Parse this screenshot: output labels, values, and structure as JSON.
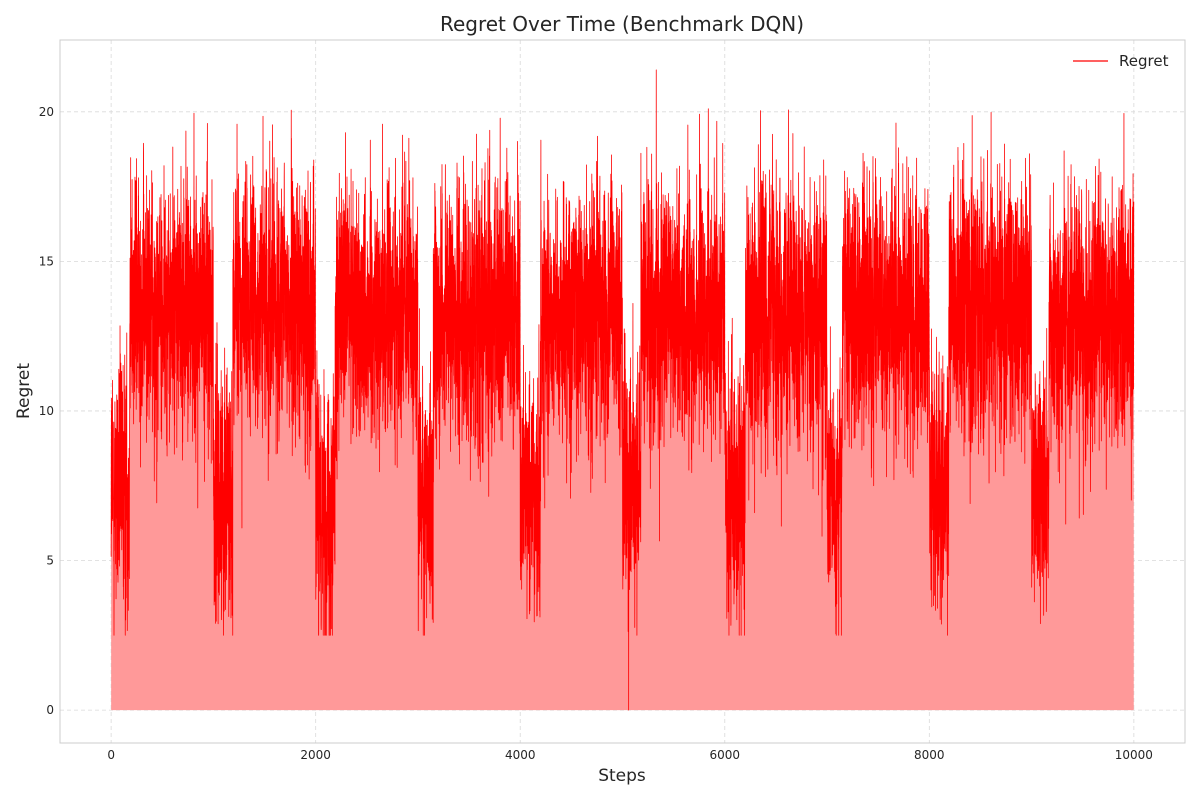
{
  "chart_data": {
    "type": "area",
    "title": "Regret Over Time (Benchmark DQN)",
    "xlabel": "Steps",
    "ylabel": "Regret",
    "xlim": [
      -500,
      10500
    ],
    "ylim": [
      -1.1,
      22.4
    ],
    "xticks": [
      0,
      2000,
      4000,
      6000,
      8000,
      10000
    ],
    "yticks": [
      0,
      5,
      10,
      15,
      20
    ],
    "grid": true,
    "legend_position": "top-right",
    "series": [
      {
        "name": "Regret",
        "color": "#ff0000",
        "fill_color": "#ff9999",
        "n_steps": 10000,
        "description": "noisy per-step regret; high phases (~9–18) alternate with low dips (~3–12) roughly every 1000 steps",
        "phases": [
          {
            "start": 0,
            "end": 180,
            "mean": 7.5,
            "spread": 2.2
          },
          {
            "start": 180,
            "end": 1000,
            "mean": 13.5,
            "spread": 2.2
          },
          {
            "start": 1000,
            "end": 1190,
            "mean": 7.5,
            "spread": 2.2
          },
          {
            "start": 1190,
            "end": 2000,
            "mean": 13.5,
            "spread": 2.2
          },
          {
            "start": 2000,
            "end": 2190,
            "mean": 7.0,
            "spread": 2.2
          },
          {
            "start": 2190,
            "end": 3000,
            "mean": 13.3,
            "spread": 2.2
          },
          {
            "start": 3000,
            "end": 3150,
            "mean": 7.2,
            "spread": 2.2
          },
          {
            "start": 3150,
            "end": 4000,
            "mean": 13.3,
            "spread": 2.2
          },
          {
            "start": 4000,
            "end": 4200,
            "mean": 7.5,
            "spread": 2.2
          },
          {
            "start": 4200,
            "end": 5000,
            "mean": 13.3,
            "spread": 2.2
          },
          {
            "start": 5000,
            "end": 5180,
            "mean": 7.5,
            "spread": 2.2
          },
          {
            "start": 5180,
            "end": 6000,
            "mean": 13.3,
            "spread": 2.2
          },
          {
            "start": 6000,
            "end": 6200,
            "mean": 7.5,
            "spread": 2.2
          },
          {
            "start": 6200,
            "end": 7000,
            "mean": 13.3,
            "spread": 2.2
          },
          {
            "start": 7000,
            "end": 7150,
            "mean": 7.3,
            "spread": 2.2
          },
          {
            "start": 7150,
            "end": 8000,
            "mean": 13.3,
            "spread": 2.2
          },
          {
            "start": 8000,
            "end": 8190,
            "mean": 7.5,
            "spread": 2.2
          },
          {
            "start": 8190,
            "end": 9000,
            "mean": 13.3,
            "spread": 2.2
          },
          {
            "start": 9000,
            "end": 9170,
            "mean": 7.3,
            "spread": 2.2
          },
          {
            "start": 9170,
            "end": 10000,
            "mean": 13.3,
            "spread": 2.2
          }
        ],
        "value_range": [
          0,
          21.4
        ],
        "peak": {
          "x": 5330,
          "y": 21.4
        },
        "min": {
          "x": 5060,
          "y": 0
        }
      }
    ]
  }
}
